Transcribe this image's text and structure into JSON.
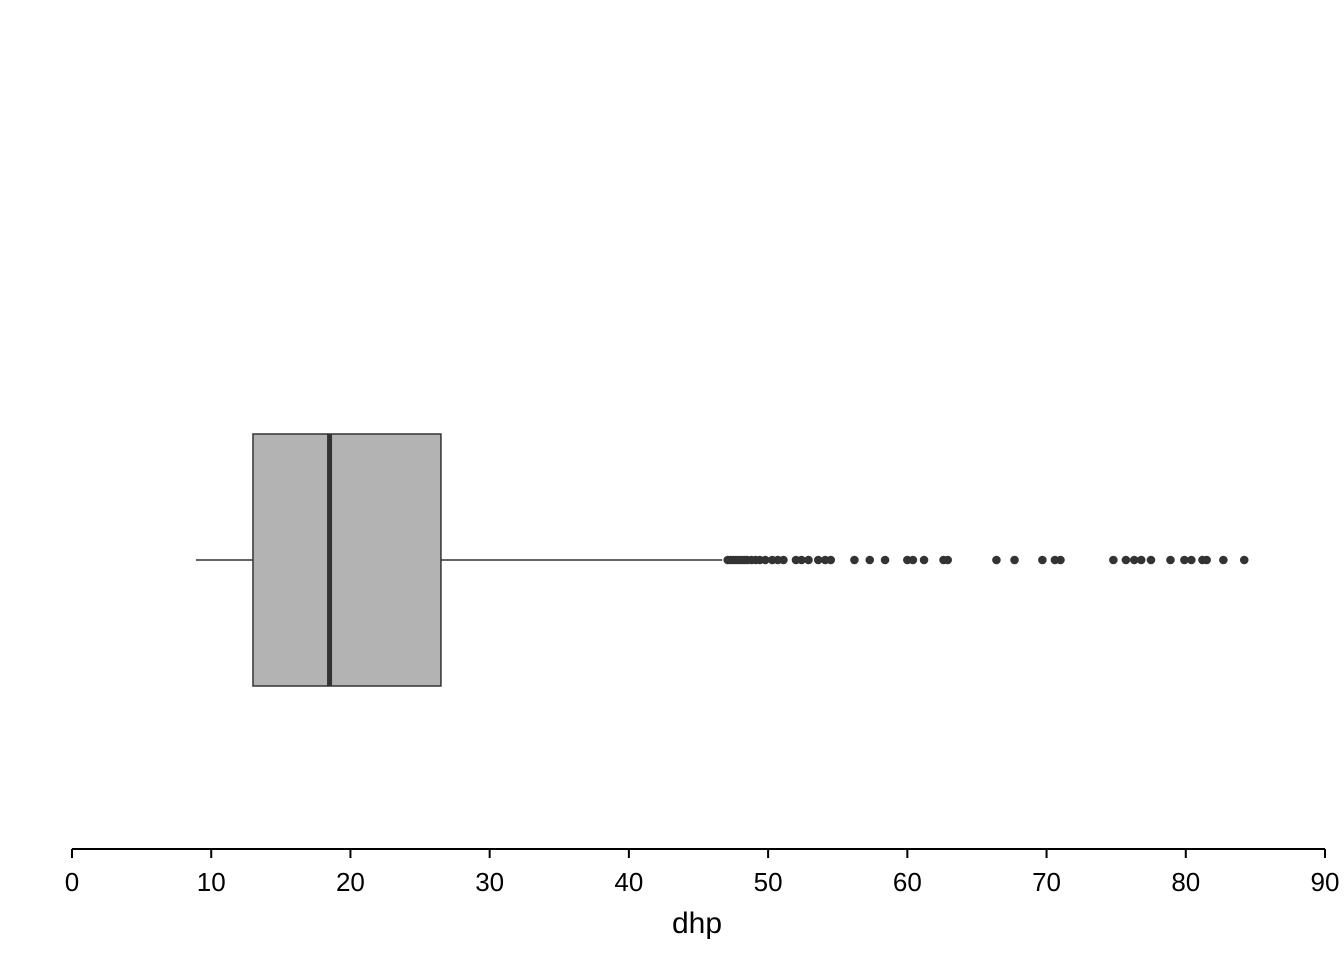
{
  "chart_data": {
    "type": "boxplot",
    "orientation": "horizontal",
    "title": "",
    "xlabel": "dhp",
    "ylabel": "",
    "xlim": [
      0,
      90
    ],
    "x_ticks": [
      0,
      10,
      20,
      30,
      40,
      50,
      60,
      70,
      80,
      90
    ],
    "x_tick_labels": [
      "0",
      "10",
      "20",
      "30",
      "40",
      "50",
      "60",
      "70",
      "80",
      "90"
    ],
    "grid": false,
    "legend": "none",
    "box": {
      "whisker_low": 8.9,
      "q1": 13.0,
      "median": 18.5,
      "q3": 26.5,
      "whisker_high": 46.7
    },
    "outliers": [
      47.1,
      47.3,
      47.5,
      47.7,
      47.9,
      48.1,
      48.3,
      48.5,
      48.8,
      49.1,
      49.4,
      49.8,
      50.3,
      50.7,
      51.1,
      52.0,
      52.4,
      52.9,
      53.6,
      54.1,
      54.5,
      56.2,
      57.3,
      58.4,
      60.0,
      60.4,
      61.2,
      62.6,
      62.9,
      66.4,
      67.7,
      69.7,
      70.6,
      71.0,
      74.8,
      75.7,
      76.3,
      76.8,
      77.5,
      78.9,
      79.9,
      80.4,
      81.2,
      81.5,
      82.7,
      84.2
    ],
    "colors": {
      "box_fill": "#b3b3b3",
      "box_line": "#333333",
      "median_line": "#333333",
      "whisker": "#333333",
      "outlier": "#333333",
      "axis": "#000000"
    }
  }
}
